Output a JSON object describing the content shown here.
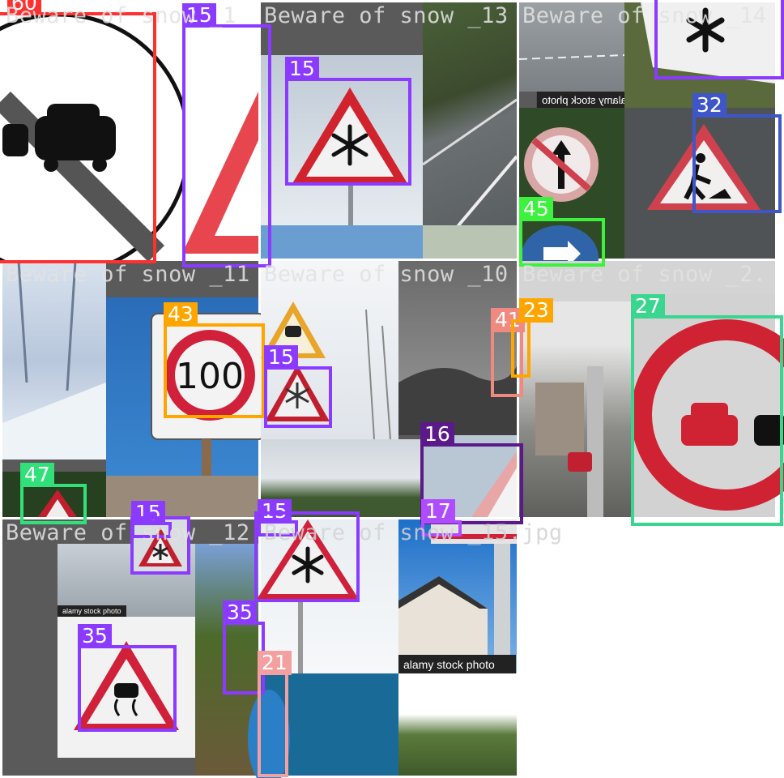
{
  "grid": {
    "tiles": [
      {
        "title": "Beware of snow _1",
        "boxes": [
          {
            "label": "60"
          },
          {
            "label": "15"
          }
        ]
      },
      {
        "title": "Beware of snow _13",
        "boxes": [
          {
            "label": "15"
          }
        ]
      },
      {
        "title": "Beware of snow _14",
        "boxes": [
          {
            "label": "32"
          },
          {
            "label": "45"
          }
        ]
      },
      {
        "title": "Beware of snow _11",
        "boxes": [
          {
            "label": "43"
          },
          {
            "label": "47"
          },
          {
            "label": "15"
          }
        ]
      },
      {
        "title": "Beware of snow _10",
        "boxes": [
          {
            "label": "15"
          },
          {
            "label": "41"
          },
          {
            "label": "16"
          },
          {
            "label": "15"
          },
          {
            "label": "17"
          }
        ]
      },
      {
        "title": "Beware of snow _2.",
        "boxes": [
          {
            "label": "23"
          },
          {
            "label": "27"
          }
        ]
      },
      {
        "title": "Beware of snow _12",
        "boxes": [
          {
            "label": "35"
          },
          {
            "label": "35"
          }
        ]
      },
      {
        "title": "Beware of snow _15.jpg",
        "boxes": [
          {
            "label": "21"
          }
        ]
      }
    ],
    "watermarks": [
      "alamy stock photo",
      "alamy stock photo",
      "alamy stock photo"
    ],
    "sign_text": "100",
    "colors": {
      "class_15": "#8b3bff",
      "class_32": "#3f56c8",
      "class_45": "#3cf23c",
      "class_43": "#ffa500",
      "class_47": "#32e07a",
      "class_41": "#f08a80",
      "class_16": "#5a1a8a",
      "class_17": "#b04cff",
      "class_23": "#ffa500",
      "class_27": "#3ad690",
      "class_35": "#8b3bff",
      "class_21": "#f4a0a0",
      "class_60": "#ff3030"
    }
  }
}
